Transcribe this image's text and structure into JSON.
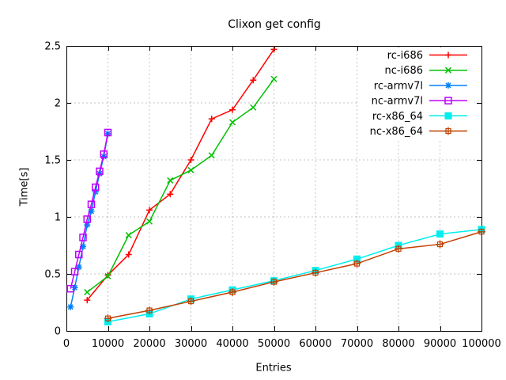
{
  "title": "Clixon get config",
  "chart_data": {
    "type": "line",
    "title": "Clixon get config",
    "xlabel": "Entries",
    "ylabel": "Time[s]",
    "xlim": [
      0,
      100000
    ],
    "ylim": [
      0,
      2.5
    ],
    "x_ticks": [
      0,
      10000,
      20000,
      30000,
      40000,
      50000,
      60000,
      70000,
      80000,
      90000,
      100000
    ],
    "x_tick_labels": [
      "0",
      "10000",
      "20000",
      "30000",
      "40000",
      "50000",
      "60000",
      "70000",
      "80000",
      "90000",
      "100000"
    ],
    "y_ticks": [
      0,
      0.5,
      1,
      1.5,
      2,
      2.5
    ],
    "y_tick_labels": [
      "0",
      "0.5",
      "1",
      "1.5",
      "2",
      "2.5"
    ],
    "grid": true,
    "legend_position": "top-right-inside",
    "grid_color": "#c4c4c4",
    "border_color": "#000000",
    "series": [
      {
        "name": "rc-i686",
        "color": "#ff0000",
        "marker": "plus",
        "x": [
          5000,
          10000,
          15000,
          20000,
          25000,
          30000,
          35000,
          40000,
          45000,
          50000
        ],
        "y": [
          0.27,
          0.49,
          0.67,
          1.06,
          1.2,
          1.5,
          1.86,
          1.94,
          2.2,
          2.47
        ]
      },
      {
        "name": "nc-i686",
        "color": "#00c000",
        "marker": "cross",
        "x": [
          5000,
          10000,
          15000,
          20000,
          25000,
          30000,
          35000,
          40000,
          45000,
          50000
        ],
        "y": [
          0.34,
          0.48,
          0.84,
          0.96,
          1.32,
          1.41,
          1.54,
          1.83,
          1.96,
          2.21
        ]
      },
      {
        "name": "rc-armv7l",
        "color": "#0080ff",
        "marker": "asterisk",
        "x": [
          1000,
          2000,
          3000,
          4000,
          5000,
          6000,
          7000,
          8000,
          9000,
          10000
        ],
        "y": [
          0.21,
          0.38,
          0.56,
          0.74,
          0.93,
          1.05,
          1.22,
          1.38,
          1.53,
          1.73
        ]
      },
      {
        "name": "nc-armv7l",
        "color": "#c000ff",
        "marker": "open-square",
        "x": [
          1000,
          2000,
          3000,
          4000,
          5000,
          6000,
          7000,
          8000,
          9000,
          10000
        ],
        "y": [
          0.37,
          0.52,
          0.67,
          0.82,
          0.98,
          1.11,
          1.26,
          1.4,
          1.55,
          1.74
        ]
      },
      {
        "name": "rc-x86_64",
        "color": "#00eeee",
        "marker": "filled-square",
        "x": [
          10000,
          20000,
          30000,
          40000,
          50000,
          60000,
          70000,
          80000,
          90000,
          100000
        ],
        "y": [
          0.08,
          0.15,
          0.28,
          0.36,
          0.44,
          0.53,
          0.63,
          0.75,
          0.85,
          0.89
        ]
      },
      {
        "name": "nc-x86_64",
        "color": "#c04000",
        "marker": "boxed-plus",
        "x": [
          10000,
          20000,
          30000,
          40000,
          50000,
          60000,
          70000,
          80000,
          90000,
          100000
        ],
        "y": [
          0.11,
          0.18,
          0.26,
          0.34,
          0.43,
          0.51,
          0.59,
          0.72,
          0.76,
          0.87
        ]
      }
    ]
  }
}
